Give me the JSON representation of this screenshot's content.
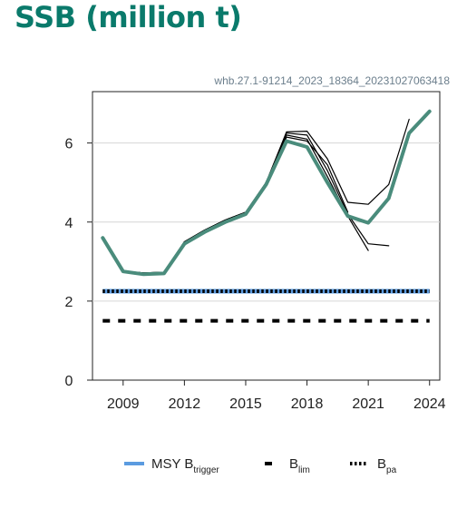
{
  "title": "SSB (million t)",
  "subtitle": "whb.27.1-91214_2023_18364_20231027063418",
  "chart_data": {
    "type": "line",
    "title": "SSB (million t)",
    "xlim": [
      2007.5,
      2024.5
    ],
    "ylim": [
      0,
      7.3
    ],
    "x_ticks": [
      2009,
      2012,
      2015,
      2018,
      2021,
      2024
    ],
    "y_ticks": [
      0,
      2,
      4,
      6
    ],
    "grid": "horizontal",
    "legend_position": "bottom",
    "colors": {
      "main": "#4a8c7c",
      "retro": "#000000",
      "msy": "#5b9be0",
      "lim": "#000000",
      "pa": "#000000"
    },
    "series": [
      {
        "role": "current",
        "x": [
          2008,
          2009,
          2010,
          2011,
          2012,
          2013,
          2014,
          2015,
          2016,
          2017,
          2018,
          2019,
          2020,
          2021,
          2022,
          2023,
          2024
        ],
        "y": [
          3.6,
          2.75,
          2.68,
          2.7,
          3.45,
          3.75,
          4.0,
          4.2,
          4.95,
          6.05,
          5.9,
          5.0,
          4.15,
          3.98,
          4.6,
          6.25,
          6.8
        ]
      },
      {
        "role": "retrospective",
        "x": [
          2008,
          2009,
          2010,
          2011,
          2012,
          2013,
          2014,
          2015,
          2016,
          2017,
          2018,
          2019,
          2020,
          2021,
          2022,
          2023
        ],
        "y": [
          3.6,
          2.76,
          2.7,
          2.72,
          3.48,
          3.78,
          4.03,
          4.23,
          5.0,
          6.28,
          6.3,
          5.6,
          4.5,
          4.45,
          4.95,
          6.6
        ]
      },
      {
        "role": "retrospective",
        "x": [
          2008,
          2009,
          2010,
          2011,
          2012,
          2013,
          2014,
          2015,
          2016,
          2017,
          2018,
          2019,
          2020,
          2021,
          2022
        ],
        "y": [
          3.6,
          2.76,
          2.71,
          2.73,
          3.5,
          3.8,
          4.05,
          4.25,
          5.0,
          6.25,
          6.2,
          5.3,
          4.2,
          3.45,
          3.4
        ]
      },
      {
        "role": "retrospective",
        "x": [
          2008,
          2009,
          2010,
          2011,
          2012,
          2013,
          2014,
          2015,
          2016,
          2017,
          2018,
          2019,
          2020,
          2021
        ],
        "y": [
          3.6,
          2.76,
          2.71,
          2.73,
          3.5,
          3.8,
          4.05,
          4.25,
          5.0,
          6.2,
          6.1,
          5.15,
          4.15,
          3.28
        ]
      },
      {
        "role": "retrospective",
        "x": [
          2008,
          2009,
          2010,
          2011,
          2012,
          2013,
          2014,
          2015,
          2016,
          2017,
          2018,
          2019,
          2020
        ],
        "y": [
          3.6,
          2.76,
          2.71,
          2.73,
          3.5,
          3.8,
          4.05,
          4.25,
          4.98,
          6.15,
          6.05,
          5.45,
          4.25
        ]
      }
    ],
    "reference_lines": [
      {
        "key": "msy",
        "value": 2.25
      },
      {
        "key": "pa",
        "value": 2.25
      },
      {
        "key": "lim",
        "value": 1.5
      }
    ],
    "legend": [
      {
        "key": "msy",
        "label": "MSY B",
        "sub": "trigger"
      },
      {
        "key": "lim",
        "label": "B",
        "sub": "lim"
      },
      {
        "key": "pa",
        "label": "B",
        "sub": "pa"
      }
    ]
  }
}
